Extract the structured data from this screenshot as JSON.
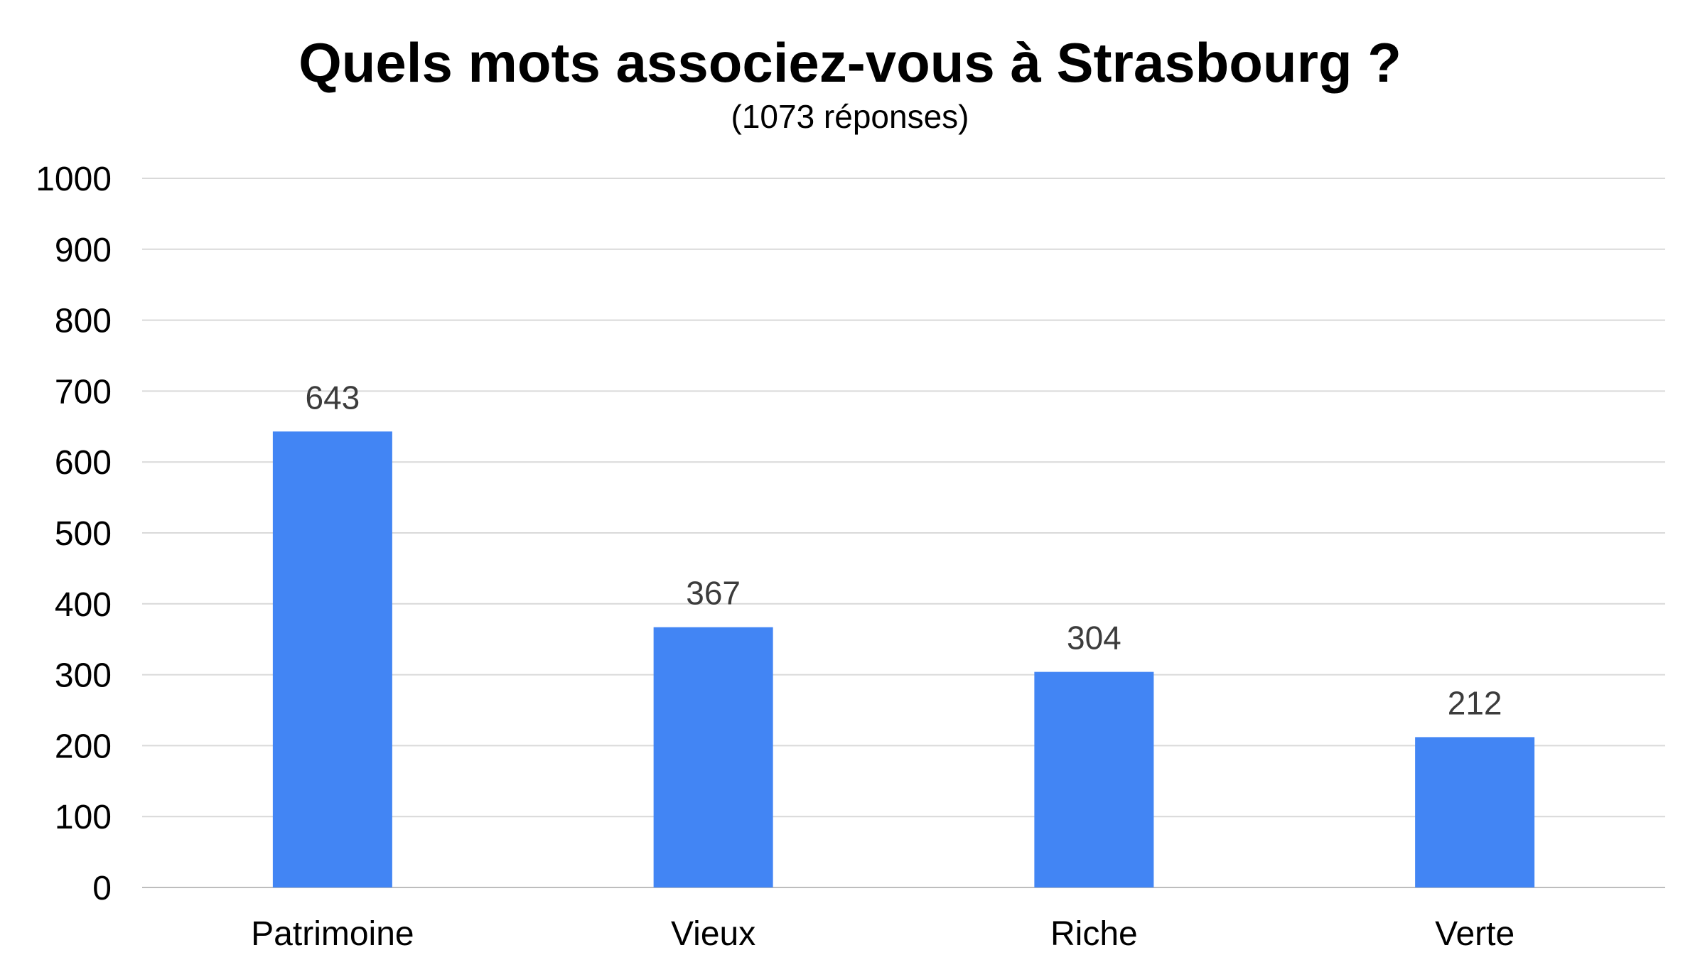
{
  "chart_data": {
    "type": "bar",
    "title": "Quels mots associez-vous à Strasbourg ?",
    "subtitle": "(1073 réponses)",
    "categories": [
      "Patrimoine",
      "Vieux",
      "Riche",
      "Verte"
    ],
    "values": [
      643,
      367,
      304,
      212
    ],
    "data_labels": [
      "643",
      "367",
      "304",
      "212"
    ],
    "ylim": [
      0,
      1000
    ],
    "yticks": [
      0,
      100,
      200,
      300,
      400,
      500,
      600,
      700,
      800,
      900,
      1000
    ],
    "ytick_labels": [
      "0",
      "100",
      "200",
      "300",
      "400",
      "500",
      "600",
      "700",
      "800",
      "900",
      "1000"
    ],
    "xlabel": "",
    "ylabel": "",
    "grid": true,
    "legend": "none",
    "bar_color": "#4285f4",
    "grid_color": "#d9d9d9",
    "data_label_color": "#3c3c3c"
  }
}
